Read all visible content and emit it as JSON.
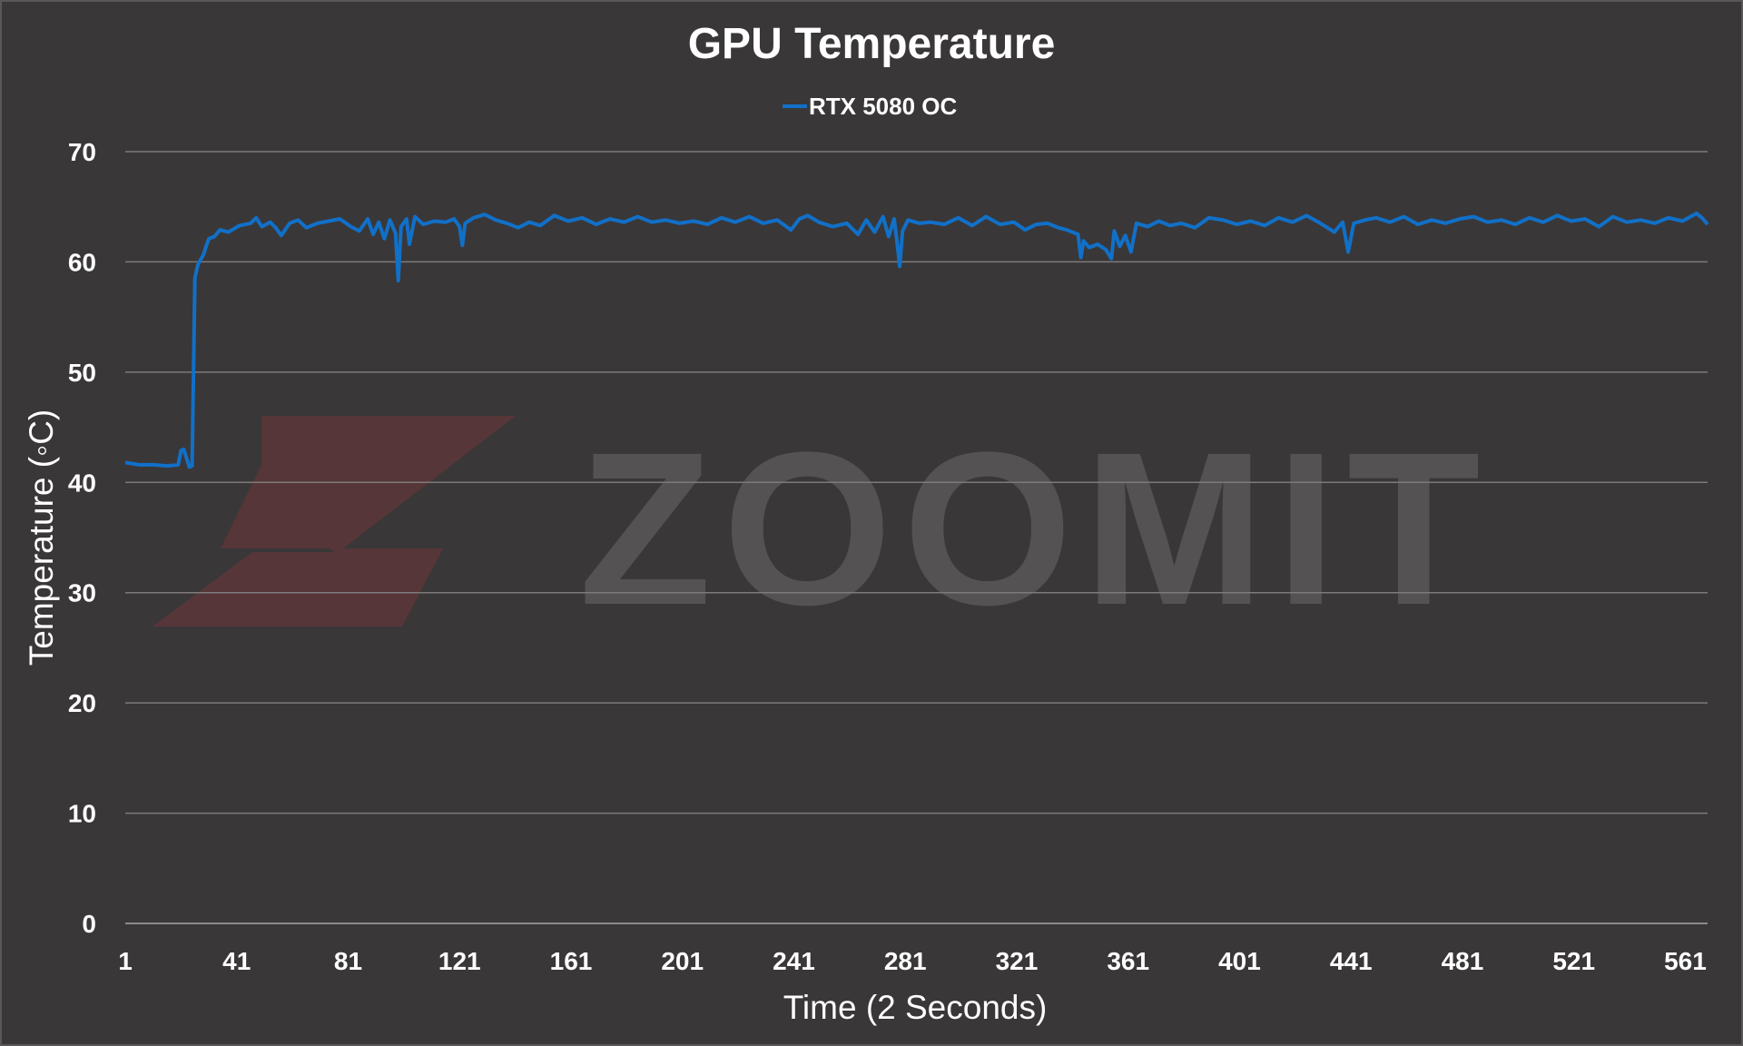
{
  "chart_data": {
    "type": "line",
    "title": "GPU Temperature",
    "xlabel": "Time (2 Seconds)",
    "ylabel": "Temperature (◦C)",
    "ylim": [
      0,
      70
    ],
    "xlim": [
      1,
      569
    ],
    "yticks": [
      0,
      10,
      20,
      30,
      40,
      50,
      60,
      70
    ],
    "xticks": [
      1,
      41,
      81,
      121,
      161,
      201,
      241,
      281,
      321,
      361,
      401,
      441,
      481,
      521,
      561
    ],
    "grid": true,
    "legend_position": "top-center",
    "watermark": "ZOOMIT",
    "colors": {
      "background": "#3a3738",
      "series": "#1170c8",
      "grid": "#8a8788",
      "text": "#ffffff",
      "watermark_text": "#555253",
      "watermark_logo": "#5a3638"
    },
    "series": [
      {
        "name": "RTX 5080 OC",
        "color": "#1170c8",
        "points": [
          [
            1,
            41.8
          ],
          [
            6,
            41.6
          ],
          [
            11,
            41.6
          ],
          [
            16,
            41.5
          ],
          [
            20,
            41.6
          ],
          [
            21,
            42.9
          ],
          [
            22,
            43.0
          ],
          [
            23,
            42.2
          ],
          [
            24,
            41.4
          ],
          [
            25,
            41.5
          ],
          [
            26,
            58.5
          ],
          [
            27,
            59.7
          ],
          [
            28,
            60.2
          ],
          [
            29,
            60.6
          ],
          [
            30,
            61.4
          ],
          [
            31,
            62.1
          ],
          [
            33,
            62.3
          ],
          [
            35,
            62.9
          ],
          [
            38,
            62.7
          ],
          [
            42,
            63.3
          ],
          [
            46,
            63.5
          ],
          [
            48,
            64.0
          ],
          [
            50,
            63.2
          ],
          [
            53,
            63.6
          ],
          [
            55,
            63.1
          ],
          [
            57,
            62.4
          ],
          [
            60,
            63.5
          ],
          [
            63,
            63.8
          ],
          [
            66,
            63.1
          ],
          [
            70,
            63.5
          ],
          [
            74,
            63.7
          ],
          [
            78,
            63.9
          ],
          [
            82,
            63.2
          ],
          [
            85,
            62.8
          ],
          [
            88,
            63.9
          ],
          [
            90,
            62.5
          ],
          [
            92,
            63.6
          ],
          [
            94,
            62.1
          ],
          [
            96,
            63.8
          ],
          [
            98,
            62.6
          ],
          [
            99,
            58.3
          ],
          [
            100,
            63.2
          ],
          [
            102,
            63.9
          ],
          [
            103,
            61.6
          ],
          [
            105,
            64.1
          ],
          [
            108,
            63.4
          ],
          [
            112,
            63.7
          ],
          [
            116,
            63.6
          ],
          [
            119,
            63.9
          ],
          [
            121,
            63.2
          ],
          [
            122,
            61.5
          ],
          [
            123,
            63.5
          ],
          [
            126,
            64.0
          ],
          [
            130,
            64.3
          ],
          [
            134,
            63.8
          ],
          [
            138,
            63.5
          ],
          [
            142,
            63.1
          ],
          [
            146,
            63.6
          ],
          [
            150,
            63.3
          ],
          [
            155,
            64.2
          ],
          [
            160,
            63.7
          ],
          [
            165,
            64.0
          ],
          [
            170,
            63.4
          ],
          [
            175,
            63.9
          ],
          [
            180,
            63.6
          ],
          [
            185,
            64.1
          ],
          [
            190,
            63.6
          ],
          [
            195,
            63.8
          ],
          [
            200,
            63.5
          ],
          [
            205,
            63.7
          ],
          [
            210,
            63.4
          ],
          [
            215,
            64.0
          ],
          [
            220,
            63.6
          ],
          [
            225,
            64.1
          ],
          [
            230,
            63.5
          ],
          [
            235,
            63.8
          ],
          [
            240,
            62.9
          ],
          [
            243,
            63.9
          ],
          [
            246,
            64.2
          ],
          [
            250,
            63.6
          ],
          [
            255,
            63.2
          ],
          [
            260,
            63.5
          ],
          [
            264,
            62.5
          ],
          [
            267,
            63.8
          ],
          [
            270,
            62.7
          ],
          [
            273,
            64.1
          ],
          [
            275,
            62.3
          ],
          [
            277,
            63.9
          ],
          [
            278,
            61.9
          ],
          [
            279,
            59.6
          ],
          [
            280,
            62.8
          ],
          [
            282,
            63.8
          ],
          [
            286,
            63.5
          ],
          [
            290,
            63.6
          ],
          [
            295,
            63.4
          ],
          [
            300,
            64.0
          ],
          [
            305,
            63.3
          ],
          [
            310,
            64.1
          ],
          [
            315,
            63.4
          ],
          [
            320,
            63.6
          ],
          [
            324,
            62.9
          ],
          [
            328,
            63.4
          ],
          [
            332,
            63.5
          ],
          [
            336,
            63.1
          ],
          [
            339,
            62.9
          ],
          [
            343,
            62.5
          ],
          [
            344,
            60.4
          ],
          [
            345,
            61.9
          ],
          [
            347,
            61.3
          ],
          [
            350,
            61.6
          ],
          [
            353,
            61.1
          ],
          [
            355,
            60.3
          ],
          [
            356,
            62.8
          ],
          [
            358,
            61.4
          ],
          [
            360,
            62.4
          ],
          [
            362,
            60.9
          ],
          [
            364,
            63.5
          ],
          [
            368,
            63.2
          ],
          [
            372,
            63.7
          ],
          [
            376,
            63.3
          ],
          [
            380,
            63.5
          ],
          [
            385,
            63.1
          ],
          [
            390,
            64.0
          ],
          [
            395,
            63.8
          ],
          [
            400,
            63.4
          ],
          [
            405,
            63.7
          ],
          [
            410,
            63.3
          ],
          [
            415,
            64.0
          ],
          [
            420,
            63.6
          ],
          [
            425,
            64.2
          ],
          [
            430,
            63.5
          ],
          [
            435,
            62.7
          ],
          [
            438,
            63.6
          ],
          [
            440,
            60.9
          ],
          [
            442,
            63.5
          ],
          [
            446,
            63.8
          ],
          [
            450,
            64.0
          ],
          [
            455,
            63.6
          ],
          [
            460,
            64.1
          ],
          [
            465,
            63.4
          ],
          [
            470,
            63.8
          ],
          [
            475,
            63.5
          ],
          [
            480,
            63.9
          ],
          [
            485,
            64.1
          ],
          [
            490,
            63.6
          ],
          [
            495,
            63.8
          ],
          [
            500,
            63.4
          ],
          [
            505,
            64.0
          ],
          [
            510,
            63.6
          ],
          [
            515,
            64.2
          ],
          [
            520,
            63.7
          ],
          [
            525,
            63.9
          ],
          [
            530,
            63.2
          ],
          [
            535,
            64.1
          ],
          [
            540,
            63.6
          ],
          [
            545,
            63.8
          ],
          [
            550,
            63.5
          ],
          [
            555,
            64.0
          ],
          [
            560,
            63.7
          ],
          [
            565,
            64.4
          ],
          [
            567,
            64.0
          ],
          [
            569,
            63.4
          ]
        ]
      }
    ]
  }
}
